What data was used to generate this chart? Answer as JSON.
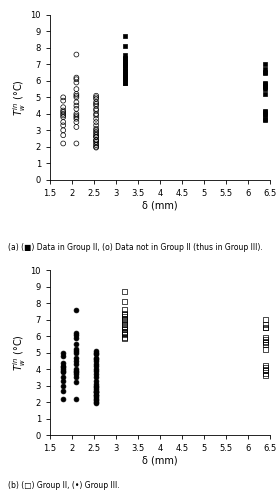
{
  "xlim": [
    1.5,
    6.5
  ],
  "ylim": [
    0,
    10
  ],
  "xticks": [
    1.5,
    2,
    2.5,
    3,
    3.5,
    4,
    4.5,
    5,
    5.5,
    6,
    6.5
  ],
  "yticks": [
    0,
    1,
    2,
    3,
    4,
    5,
    6,
    7,
    8,
    9,
    10
  ],
  "xlabel": "δ (mm)",
  "ylabel": "$T_w^{in}$ (°C)",
  "caption_a": "(a) (■) Data in Group II, (o) Data not in Group II (thus in Group III).",
  "caption_b": "(b) (□) Group II, (•) Group III.",
  "group2_delta1": 1.8,
  "group2_delta2": 2.1,
  "group2_delta3": 2.55,
  "group2_delta4": 3.2,
  "group2_delta5": 6.4,
  "plot_a_filled_x": [
    3.2,
    3.2,
    3.2,
    3.2,
    3.2,
    3.2,
    3.2,
    3.2,
    3.2,
    3.2,
    3.2,
    3.2,
    3.2,
    3.2,
    3.2,
    3.2,
    3.2,
    3.2,
    3.2,
    3.2,
    6.4,
    6.4,
    6.4,
    6.4,
    6.4,
    6.4,
    6.4,
    6.4,
    6.4,
    6.4,
    6.4,
    6.4,
    6.4,
    6.4,
    6.4,
    6.4
  ],
  "plot_a_filled_y": [
    8.7,
    8.1,
    7.6,
    7.4,
    7.3,
    7.2,
    7.1,
    7.0,
    6.95,
    6.8,
    6.7,
    6.6,
    6.5,
    6.4,
    6.3,
    6.2,
    6.15,
    6.1,
    5.9,
    5.85,
    7.0,
    6.7,
    6.55,
    6.5,
    5.9,
    5.8,
    5.7,
    5.6,
    5.5,
    5.2,
    4.2,
    4.1,
    4.0,
    3.9,
    3.7,
    3.6
  ],
  "plot_a_open_x": [
    1.8,
    1.8,
    1.8,
    1.8,
    1.8,
    1.8,
    1.8,
    1.8,
    1.8,
    1.8,
    1.8,
    1.8,
    1.8,
    2.1,
    2.1,
    2.1,
    2.1,
    2.1,
    2.1,
    2.1,
    2.1,
    2.1,
    2.1,
    2.1,
    2.1,
    2.1,
    2.1,
    2.1,
    2.1,
    2.1,
    2.1,
    2.55,
    2.55,
    2.55,
    2.55,
    2.55,
    2.55,
    2.55,
    2.55,
    2.55,
    2.55,
    2.55,
    2.55,
    2.55,
    2.55,
    2.55,
    2.55,
    2.55,
    2.55,
    2.55,
    2.55,
    2.55,
    2.55,
    2.55,
    2.55,
    2.55,
    2.55,
    2.55
  ],
  "plot_a_open_y": [
    5.0,
    4.8,
    4.4,
    4.2,
    4.1,
    4.0,
    3.9,
    3.8,
    3.5,
    3.3,
    3.0,
    2.7,
    2.2,
    7.6,
    6.2,
    6.1,
    5.9,
    5.5,
    5.2,
    5.1,
    5.0,
    4.7,
    4.5,
    4.3,
    4.0,
    3.9,
    3.8,
    3.7,
    3.5,
    3.2,
    2.2,
    5.1,
    5.0,
    4.9,
    4.7,
    4.6,
    4.5,
    4.3,
    4.2,
    4.0,
    3.9,
    3.7,
    3.5,
    3.3,
    3.1,
    2.9,
    2.7,
    2.6,
    2.4,
    2.3,
    2.2,
    2.1,
    2.0,
    1.95,
    3.0,
    2.8,
    2.6,
    2.4
  ],
  "plot_b_open_x": [
    3.2,
    3.2,
    3.2,
    3.2,
    3.2,
    3.2,
    3.2,
    3.2,
    3.2,
    3.2,
    3.2,
    3.2,
    3.2,
    3.2,
    3.2,
    3.2,
    3.2,
    3.2,
    3.2,
    3.2,
    6.4,
    6.4,
    6.4,
    6.4,
    6.4,
    6.4,
    6.4,
    6.4,
    6.4,
    6.4,
    6.4,
    6.4,
    6.4,
    6.4,
    6.4,
    6.4
  ],
  "plot_b_open_y": [
    8.7,
    8.1,
    7.6,
    7.4,
    7.3,
    7.2,
    7.1,
    7.0,
    6.95,
    6.8,
    6.7,
    6.6,
    6.5,
    6.4,
    6.3,
    6.2,
    6.15,
    6.1,
    5.9,
    5.85,
    7.0,
    6.7,
    6.55,
    6.5,
    5.9,
    5.8,
    5.7,
    5.6,
    5.5,
    5.2,
    4.2,
    4.1,
    4.0,
    3.9,
    3.7,
    3.6
  ],
  "plot_b_filled_x": [
    1.8,
    1.8,
    1.8,
    1.8,
    1.8,
    1.8,
    1.8,
    1.8,
    1.8,
    1.8,
    1.8,
    1.8,
    1.8,
    2.1,
    2.1,
    2.1,
    2.1,
    2.1,
    2.1,
    2.1,
    2.1,
    2.1,
    2.1,
    2.1,
    2.1,
    2.1,
    2.1,
    2.1,
    2.1,
    2.1,
    2.1,
    2.55,
    2.55,
    2.55,
    2.55,
    2.55,
    2.55,
    2.55,
    2.55,
    2.55,
    2.55,
    2.55,
    2.55,
    2.55,
    2.55,
    2.55,
    2.55,
    2.55,
    2.55,
    2.55,
    2.55,
    2.55,
    2.55,
    2.55,
    2.55,
    2.55,
    2.55,
    2.55
  ],
  "plot_b_filled_y": [
    5.0,
    4.8,
    4.4,
    4.2,
    4.1,
    4.0,
    3.9,
    3.8,
    3.5,
    3.3,
    3.0,
    2.7,
    2.2,
    7.6,
    6.2,
    6.1,
    5.9,
    5.5,
    5.2,
    5.1,
    5.0,
    4.7,
    4.5,
    4.3,
    4.0,
    3.9,
    3.8,
    3.7,
    3.5,
    3.2,
    2.2,
    5.1,
    5.0,
    4.9,
    4.7,
    4.6,
    4.5,
    4.3,
    4.2,
    4.0,
    3.9,
    3.7,
    3.5,
    3.3,
    3.1,
    2.9,
    2.7,
    2.6,
    2.4,
    2.3,
    2.2,
    2.1,
    2.0,
    1.95,
    3.0,
    2.8,
    2.6,
    2.4
  ]
}
